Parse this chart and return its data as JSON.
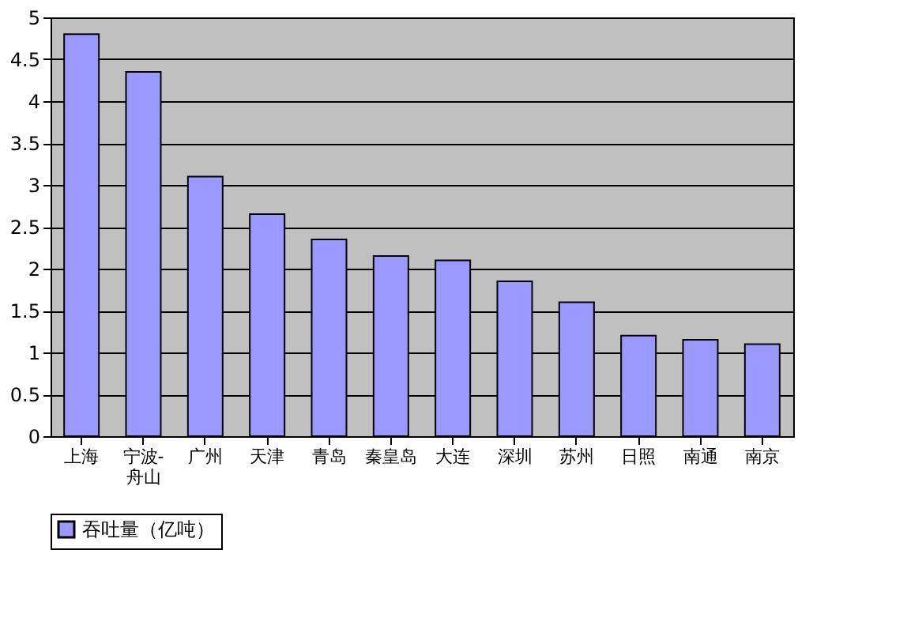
{
  "chart_data": {
    "type": "bar",
    "categories": [
      "上海",
      "宁波-舟山",
      "广州",
      "天津",
      "青岛",
      "秦皇岛",
      "大连",
      "深圳",
      "苏州",
      "日照",
      "南通",
      "南京"
    ],
    "series": [
      {
        "name": "吞吐量（亿吨）",
        "color": "#9999ff",
        "values": [
          4.8,
          4.35,
          3.1,
          2.65,
          2.35,
          2.15,
          2.1,
          1.85,
          1.6,
          1.2,
          1.15,
          1.1
        ]
      }
    ],
    "ylim": [
      0,
      5
    ],
    "yticks": [
      0,
      0.5,
      1,
      1.5,
      2,
      2.5,
      3,
      3.5,
      4,
      4.5,
      5
    ],
    "grid": "y",
    "legend": "bottom"
  }
}
